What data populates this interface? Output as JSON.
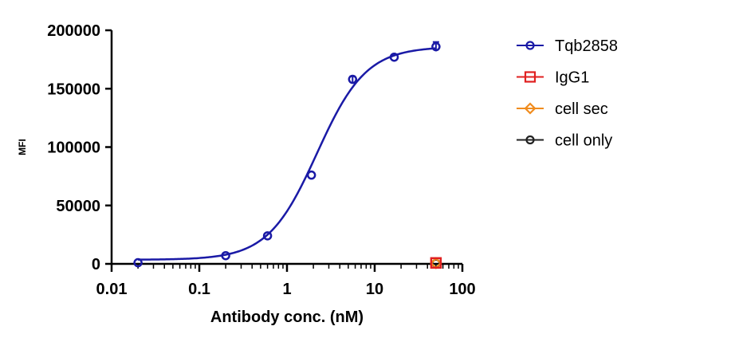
{
  "chart_data": {
    "type": "scatter",
    "title": "",
    "xlabel": "Antibody conc. (nM)",
    "ylabel": "MFI",
    "x_scale": "log",
    "xlim": [
      0.01,
      100
    ],
    "ylim": [
      0,
      200000
    ],
    "x_ticks": [
      0.01,
      0.1,
      1,
      10,
      100
    ],
    "x_tick_labels": [
      "0.01",
      "0.1",
      "1",
      "10",
      "100"
    ],
    "y_ticks": [
      0,
      50000,
      100000,
      150000,
      200000
    ],
    "y_tick_labels": [
      "0",
      "50000",
      "100000",
      "150000",
      "200000"
    ],
    "grid": false,
    "legend_position": "right",
    "series": [
      {
        "name": "Tqb2858",
        "color": "#1a1aa6",
        "marker": "circle",
        "fit": "four-parameter logistic curve",
        "x": [
          0.02,
          0.2,
          0.6,
          1.9,
          5.6,
          16.7,
          50
        ],
        "y": [
          1000,
          7000,
          24000,
          76000,
          158000,
          177000,
          186000
        ],
        "error": [
          0,
          0,
          0,
          0,
          2500,
          0,
          4000
        ]
      },
      {
        "name": "IgG1",
        "color": "#e02020",
        "marker": "square",
        "x": [
          50
        ],
        "y": [
          800
        ]
      },
      {
        "name": "cell sec",
        "color": "#f08c1e",
        "marker": "diamond",
        "x": [
          50
        ],
        "y": [
          600
        ]
      },
      {
        "name": "cell only",
        "color": "#222222",
        "marker": "circle",
        "x": [
          50
        ],
        "y": [
          500
        ]
      }
    ]
  }
}
